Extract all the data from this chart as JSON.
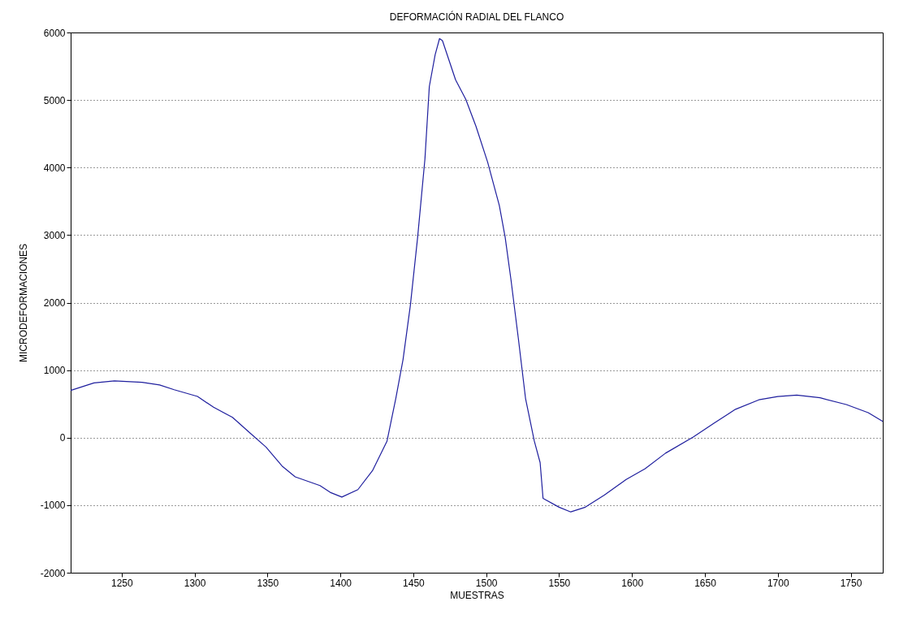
{
  "chart_data": {
    "type": "line",
    "title": "DEFORMACIÓN RADIAL DEL FLANCO",
    "xlabel": "MUESTRAS",
    "ylabel": "MICRODEFORMACIONES",
    "x": [
      1215,
      1231,
      1245,
      1264,
      1276,
      1286,
      1302,
      1313,
      1326,
      1338,
      1349,
      1360,
      1369,
      1386,
      1393,
      1401,
      1412,
      1422,
      1432,
      1438,
      1443,
      1448,
      1453,
      1458,
      1461,
      1465,
      1468,
      1470,
      1479,
      1486,
      1493,
      1501,
      1509,
      1513,
      1517,
      1522,
      1527,
      1533,
      1537,
      1539,
      1550,
      1558,
      1568,
      1581,
      1596,
      1609,
      1623,
      1642,
      1656,
      1671,
      1687,
      1700,
      1713,
      1729,
      1747,
      1762,
      1772
    ],
    "series": [
      {
        "color": "#1f1f9e",
        "values": [
          700,
          810,
          840,
          820,
          780,
          710,
          610,
          450,
          300,
          70,
          -140,
          -420,
          -580,
          -710,
          -810,
          -880,
          -770,
          -490,
          -50,
          580,
          1160,
          1960,
          2970,
          4130,
          5200,
          5670,
          5910,
          5880,
          5300,
          5010,
          4610,
          4080,
          3440,
          2970,
          2340,
          1480,
          580,
          -50,
          -370,
          -900,
          -1030,
          -1100,
          -1030,
          -850,
          -620,
          -460,
          -230,
          10,
          210,
          420,
          560,
          610,
          630,
          590,
          490,
          370,
          240
        ]
      }
    ],
    "xlim": [
      1215,
      1772
    ],
    "ylim": [
      -2000,
      6000
    ],
    "xticks": [
      1250,
      1300,
      1350,
      1400,
      1450,
      1500,
      1550,
      1600,
      1650,
      1700,
      1750
    ],
    "yticks": [
      -2000,
      -1000,
      0,
      1000,
      2000,
      3000,
      4000,
      5000,
      6000
    ],
    "grid": "y",
    "line_style": "solid",
    "marker": "none"
  }
}
